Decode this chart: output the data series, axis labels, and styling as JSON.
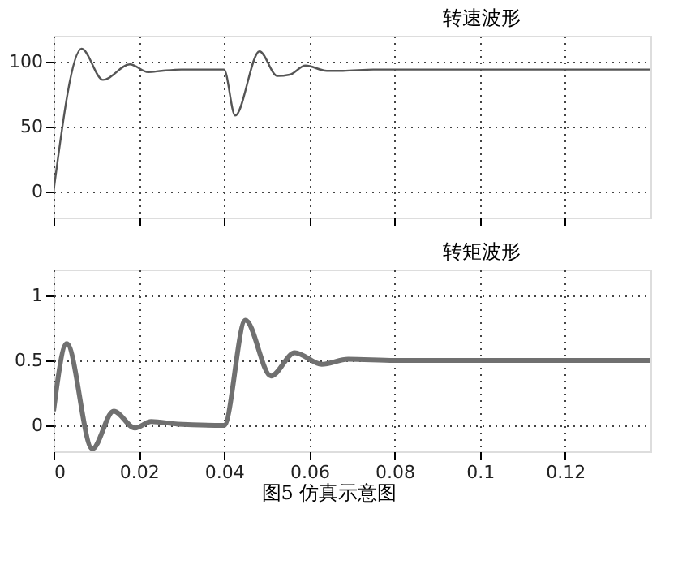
{
  "chart_data": [
    {
      "type": "line",
      "title": "转速波形",
      "tick_labels": "y",
      "grid": true,
      "line_style": "solid",
      "marker": "none",
      "xlim": [
        0,
        0.14
      ],
      "xticks": [
        0,
        0.02,
        0.04,
        0.06,
        0.08,
        0.1,
        0.12
      ],
      "ylim": [
        -20,
        120
      ],
      "yticks": [
        0,
        50,
        100
      ],
      "series": [
        {
          "color": "#555555",
          "x": [
            0,
            0.0066,
            0.0116,
            0.0179,
            0.0222,
            0.0254,
            0.03,
            0.04,
            0.0426,
            0.0483,
            0.0525,
            0.0554,
            0.0591,
            0.0641,
            0.0679,
            0.075,
            0.14
          ],
          "values": [
            0,
            110,
            86,
            98,
            92,
            93,
            94,
            94,
            58.5,
            108,
            89,
            90,
            97,
            93,
            93,
            94,
            94
          ]
        }
      ]
    },
    {
      "type": "line",
      "title": "转矩波形",
      "grid": true,
      "line_style": "solid",
      "marker": "none",
      "xlim": [
        0,
        0.14
      ],
      "xticks": [
        0,
        0.02,
        0.04,
        0.06,
        0.08,
        0.1,
        0.12
      ],
      "ylim": [
        -0.2,
        1.2
      ],
      "yticks": [
        0,
        0.5,
        1
      ],
      "annotations": [
        "图5    仿真示意图"
      ],
      "series": [
        {
          "color": "#707070",
          "x": [
            0,
            0.0031,
            0.0091,
            0.0141,
            0.0191,
            0.0229,
            0.0291,
            0.04,
            0.045,
            0.051,
            0.0566,
            0.0629,
            0.0691,
            0.08,
            0.1,
            0.12,
            0.14
          ],
          "values": [
            0.11,
            0.63,
            -0.18,
            0.11,
            -0.02,
            0.03,
            0.01,
            0,
            0.81,
            0.38,
            0.56,
            0.47,
            0.51,
            0.5,
            0.5,
            0.5,
            0.5
          ]
        }
      ]
    }
  ]
}
